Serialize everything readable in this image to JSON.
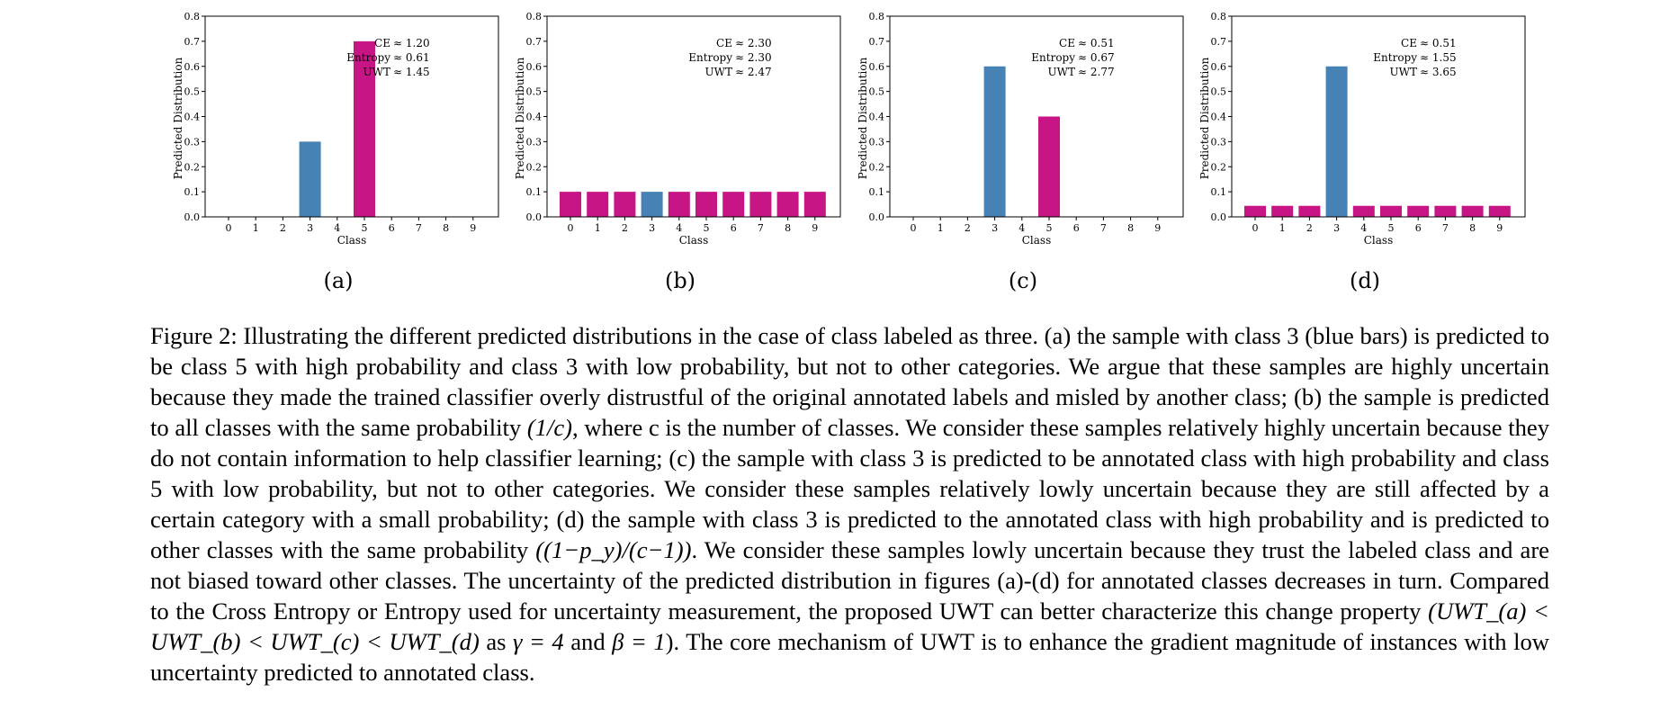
{
  "chart_data": [
    {
      "type": "bar",
      "panel_label": "(a)",
      "xlabel": "Class",
      "ylabel": "Predicted Distribution",
      "categories": [
        "0",
        "1",
        "2",
        "3",
        "4",
        "5",
        "6",
        "7",
        "8",
        "9"
      ],
      "values": [
        0,
        0,
        0,
        0.3,
        0,
        0.7,
        0,
        0,
        0,
        0
      ],
      "bar_colors": [
        "#c71585",
        "#c71585",
        "#c71585",
        "#4682b4",
        "#c71585",
        "#c71585",
        "#c71585",
        "#c71585",
        "#c71585",
        "#c71585"
      ],
      "ylim": [
        0,
        0.8
      ],
      "yticks": [
        "0.0",
        "0.1",
        "0.2",
        "0.3",
        "0.4",
        "0.5",
        "0.6",
        "0.7",
        "0.8"
      ],
      "annotation": {
        "lines": [
          [
            "CE",
            "≈ 1.20"
          ],
          [
            "Entropy",
            "≈ 0.61"
          ],
          [
            "UWT",
            "≈ 1.45"
          ]
        ],
        "position": "top-right"
      },
      "grid": false
    },
    {
      "type": "bar",
      "panel_label": "(b)",
      "xlabel": "Class",
      "ylabel": "Predicted Distribution",
      "categories": [
        "0",
        "1",
        "2",
        "3",
        "4",
        "5",
        "6",
        "7",
        "8",
        "9"
      ],
      "values": [
        0.1,
        0.1,
        0.1,
        0.1,
        0.1,
        0.1,
        0.1,
        0.1,
        0.1,
        0.1
      ],
      "bar_colors": [
        "#c71585",
        "#c71585",
        "#c71585",
        "#4682b4",
        "#c71585",
        "#c71585",
        "#c71585",
        "#c71585",
        "#c71585",
        "#c71585"
      ],
      "ylim": [
        0,
        0.8
      ],
      "yticks": [
        "0.0",
        "0.1",
        "0.2",
        "0.3",
        "0.4",
        "0.5",
        "0.6",
        "0.7",
        "0.8"
      ],
      "annotation": {
        "lines": [
          [
            "CE",
            "≈ 2.30"
          ],
          [
            "Entropy",
            "≈ 2.30"
          ],
          [
            "UWT",
            "≈ 2.47"
          ]
        ],
        "position": "top-right"
      },
      "grid": false
    },
    {
      "type": "bar",
      "panel_label": "(c)",
      "xlabel": "Class",
      "ylabel": "Predicted Distribution",
      "categories": [
        "0",
        "1",
        "2",
        "3",
        "4",
        "5",
        "6",
        "7",
        "8",
        "9"
      ],
      "values": [
        0,
        0,
        0,
        0.6,
        0,
        0.4,
        0,
        0,
        0,
        0
      ],
      "bar_colors": [
        "#c71585",
        "#c71585",
        "#c71585",
        "#4682b4",
        "#c71585",
        "#c71585",
        "#c71585",
        "#c71585",
        "#c71585",
        "#c71585"
      ],
      "ylim": [
        0,
        0.8
      ],
      "yticks": [
        "0.0",
        "0.1",
        "0.2",
        "0.3",
        "0.4",
        "0.5",
        "0.6",
        "0.7",
        "0.8"
      ],
      "annotation": {
        "lines": [
          [
            "CE",
            "≈ 0.51"
          ],
          [
            "Entropy",
            "≈ 0.67"
          ],
          [
            "UWT",
            "≈ 2.77"
          ]
        ],
        "position": "top-right"
      },
      "grid": false
    },
    {
      "type": "bar",
      "panel_label": "(d)",
      "xlabel": "Class",
      "ylabel": "Predicted Distribution",
      "categories": [
        "0",
        "1",
        "2",
        "3",
        "4",
        "5",
        "6",
        "7",
        "8",
        "9"
      ],
      "values": [
        0.044,
        0.044,
        0.044,
        0.6,
        0.044,
        0.044,
        0.044,
        0.044,
        0.044,
        0.044
      ],
      "bar_colors": [
        "#c71585",
        "#c71585",
        "#c71585",
        "#4682b4",
        "#c71585",
        "#c71585",
        "#c71585",
        "#c71585",
        "#c71585",
        "#c71585"
      ],
      "ylim": [
        0,
        0.8
      ],
      "yticks": [
        "0.0",
        "0.1",
        "0.2",
        "0.3",
        "0.4",
        "0.5",
        "0.6",
        "0.7",
        "0.8"
      ],
      "annotation": {
        "lines": [
          [
            "CE",
            "≈ 0.51"
          ],
          [
            "Entropy",
            "≈ 1.55"
          ],
          [
            "UWT",
            "≈ 3.65"
          ]
        ],
        "position": "top-right"
      },
      "grid": false
    }
  ],
  "caption": {
    "segments": [
      {
        "t": "Figure 2: Illustrating the different predicted distributions in the case of class labeled as three. (a) the sample with class 3 (blue bars) is predicted to be class 5 with high probability and class 3 with low probability, but not to other categories. We argue that these samples are highly uncertain because they made the trained classifier overly distrustful of the original annotated labels and misled by another class; (b) the sample is predicted to all classes with the same probability ",
        "m": false
      },
      {
        "t": "(1/c)",
        "m": true
      },
      {
        "t": ", where c is the number of classes. We consider these samples relatively highly uncertain because they do not contain information to help classifier learning; (c) the sample with class 3 is predicted to be annotated class with high probability and class 5 with low probability, but not to other categories. We consider these samples relatively lowly uncertain because they are still affected by a certain category with a small probability; (d) the sample with class 3 is predicted to the annotated class with high probability and is predicted to other classes with the same probability ",
        "m": false
      },
      {
        "t": "((1−p_y)/(c−1))",
        "m": true
      },
      {
        "t": ". We consider these samples lowly uncertain because they trust the labeled class and are not biased toward other classes. The uncertainty of the predicted distribution in figures (a)-(d) for annotated classes decreases in turn. Compared to the Cross Entropy or Entropy used for uncertainty measurement, the proposed UWT can better characterize this change property ",
        "m": false
      },
      {
        "t": "(UWT_(a) < UWT_(b) < UWT_(c) < UWT_(d)",
        "m": true
      },
      {
        "t": " as ",
        "m": false
      },
      {
        "t": "γ = 4",
        "m": true
      },
      {
        "t": " and ",
        "m": false
      },
      {
        "t": "β = 1",
        "m": true
      },
      {
        "t": "). The core mechanism of UWT is to enhance the gradient magnitude of instances with low uncertainty predicted to annotated class.",
        "m": false
      }
    ]
  }
}
